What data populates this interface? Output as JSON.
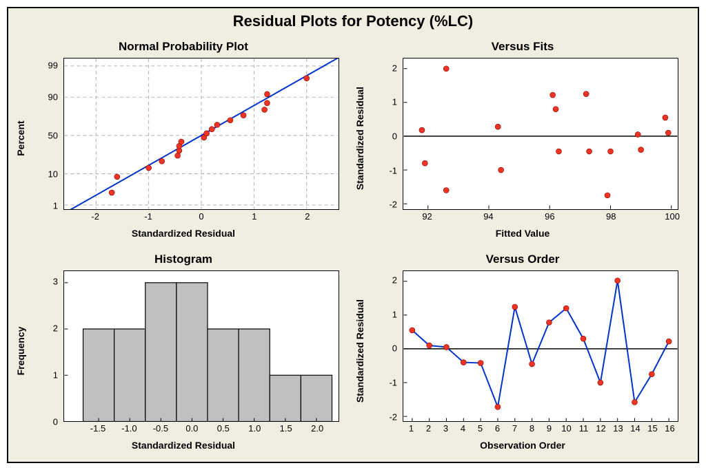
{
  "main_title": "Residual Plots for Potency (%LC)",
  "main_title_fontsize": 22,
  "subtitle_fontsize": 17,
  "label_fontsize": 14,
  "tick_fontsize": 13,
  "frame_bg": "#f0ede1",
  "plot_bg": "#ffffff",
  "border_color": "#000000",
  "grid_color": "#b0b0b0",
  "marker_color": "#ee3524",
  "line_color": "#0033cc",
  "bar_fill": "#c0c0c0",
  "bar_stroke": "#000000",
  "zero_line_color": "#000000",
  "npp": {
    "title": "Normal Probability Plot",
    "xlabel": "Standardized Residual",
    "ylabel": "Percent",
    "xlim": [
      -2.6,
      2.6
    ],
    "xticks": [
      -2,
      -1,
      0,
      1,
      2
    ],
    "yticks_pct": [
      1,
      10,
      50,
      90,
      99
    ],
    "line_x": [
      -2.6,
      2.6
    ],
    "points_x": [
      -1.7,
      -1.6,
      -1.0,
      -0.75,
      -0.45,
      -0.42,
      -0.42,
      -0.38,
      0.05,
      0.1,
      0.2,
      0.3,
      0.55,
      0.8,
      1.2,
      1.25,
      1.25,
      2.0
    ],
    "marker_radius": 4
  },
  "vfits": {
    "title": "Versus Fits",
    "xlabel": "Fitted Value",
    "ylabel": "Standardized Residual",
    "xlim": [
      91.2,
      100.2
    ],
    "xticks": [
      92,
      94,
      96,
      98,
      100
    ],
    "ylim": [
      -2.15,
      2.3
    ],
    "yticks": [
      -2,
      -1,
      0,
      1,
      2
    ],
    "points": [
      [
        91.8,
        0.18
      ],
      [
        91.9,
        -0.8
      ],
      [
        92.6,
        -1.6
      ],
      [
        92.6,
        2.0
      ],
      [
        94.3,
        0.28
      ],
      [
        94.4,
        -1.0
      ],
      [
        96.1,
        1.22
      ],
      [
        96.2,
        0.8
      ],
      [
        96.3,
        -0.45
      ],
      [
        97.2,
        1.25
      ],
      [
        97.3,
        -0.45
      ],
      [
        97.9,
        -1.75
      ],
      [
        98.0,
        -0.45
      ],
      [
        98.9,
        0.05
      ],
      [
        99.0,
        -0.4
      ],
      [
        99.8,
        0.55
      ],
      [
        99.9,
        0.1
      ]
    ],
    "marker_radius": 4
  },
  "hist": {
    "title": "Histogram",
    "xlabel": "Standardized Residual",
    "ylabel": "Frequency",
    "xlim": [
      -2.05,
      2.35
    ],
    "xticks": [
      -1.5,
      -1.0,
      -0.5,
      0.0,
      0.5,
      1.0,
      1.5,
      2.0
    ],
    "ylim": [
      0,
      3.25
    ],
    "yticks": [
      0,
      1,
      2,
      3
    ],
    "bin_centers": [
      -1.5,
      -1.0,
      -0.5,
      0.0,
      0.5,
      1.0,
      1.5,
      2.0
    ],
    "bin_width": 0.5,
    "counts": [
      2,
      2,
      3,
      3,
      2,
      2,
      1,
      1
    ]
  },
  "vorder": {
    "title": "Versus Order",
    "xlabel": "Observation Order",
    "ylabel": "Standardized Residual",
    "xlim": [
      0.5,
      16.5
    ],
    "xticks": [
      1,
      2,
      3,
      4,
      5,
      6,
      7,
      8,
      9,
      10,
      11,
      12,
      13,
      14,
      15,
      16
    ],
    "ylim": [
      -2.15,
      2.3
    ],
    "yticks": [
      -2,
      -1,
      0,
      1,
      2
    ],
    "values": [
      0.55,
      0.1,
      0.05,
      -0.4,
      -0.42,
      -1.72,
      1.24,
      -0.45,
      0.78,
      1.2,
      0.3,
      -1.0,
      2.02,
      -1.58,
      -0.75,
      0.22
    ],
    "marker_radius": 4
  }
}
